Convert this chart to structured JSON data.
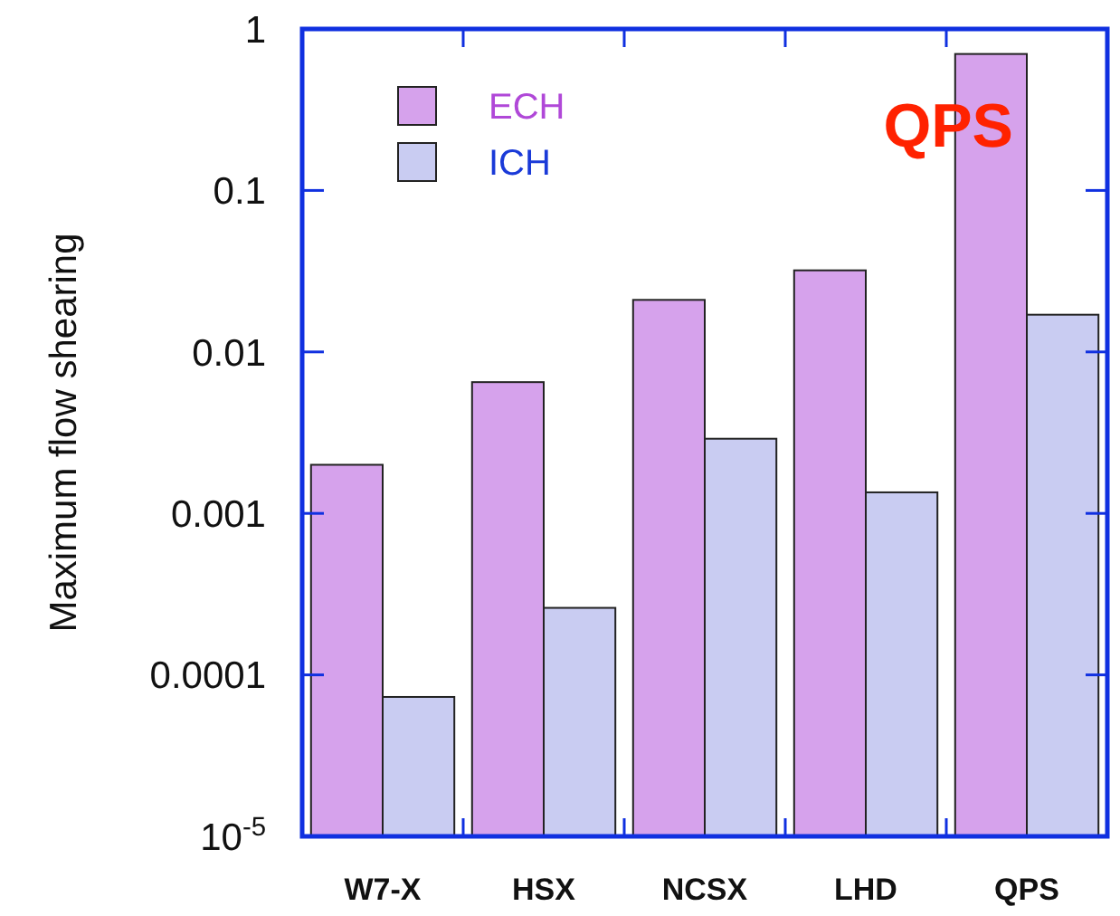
{
  "chart_data": {
    "type": "bar",
    "ylabel": "Maximum flow shearing",
    "log": true,
    "categories": [
      "W7-X",
      "HSX",
      "NCSX",
      "LHD",
      "QPS"
    ],
    "series": [
      {
        "name": "ECH",
        "color": "#d6a2ec",
        "values": [
          0.002,
          0.0065,
          0.021,
          0.032,
          0.7
        ]
      },
      {
        "name": "ICH",
        "color": "#c9ccf2",
        "values": [
          7.3e-05,
          0.00026,
          0.0029,
          0.00135,
          0.017
        ]
      }
    ],
    "ylim": [
      1e-05,
      1
    ],
    "yticks": [
      {
        "value": 1e-05,
        "label": "10$^{-5}$"
      },
      0.0001,
      0.001,
      0.01,
      0.1,
      1
    ],
    "annotations": [
      "QPS"
    ],
    "legend": "top left",
    "grid": false
  }
}
